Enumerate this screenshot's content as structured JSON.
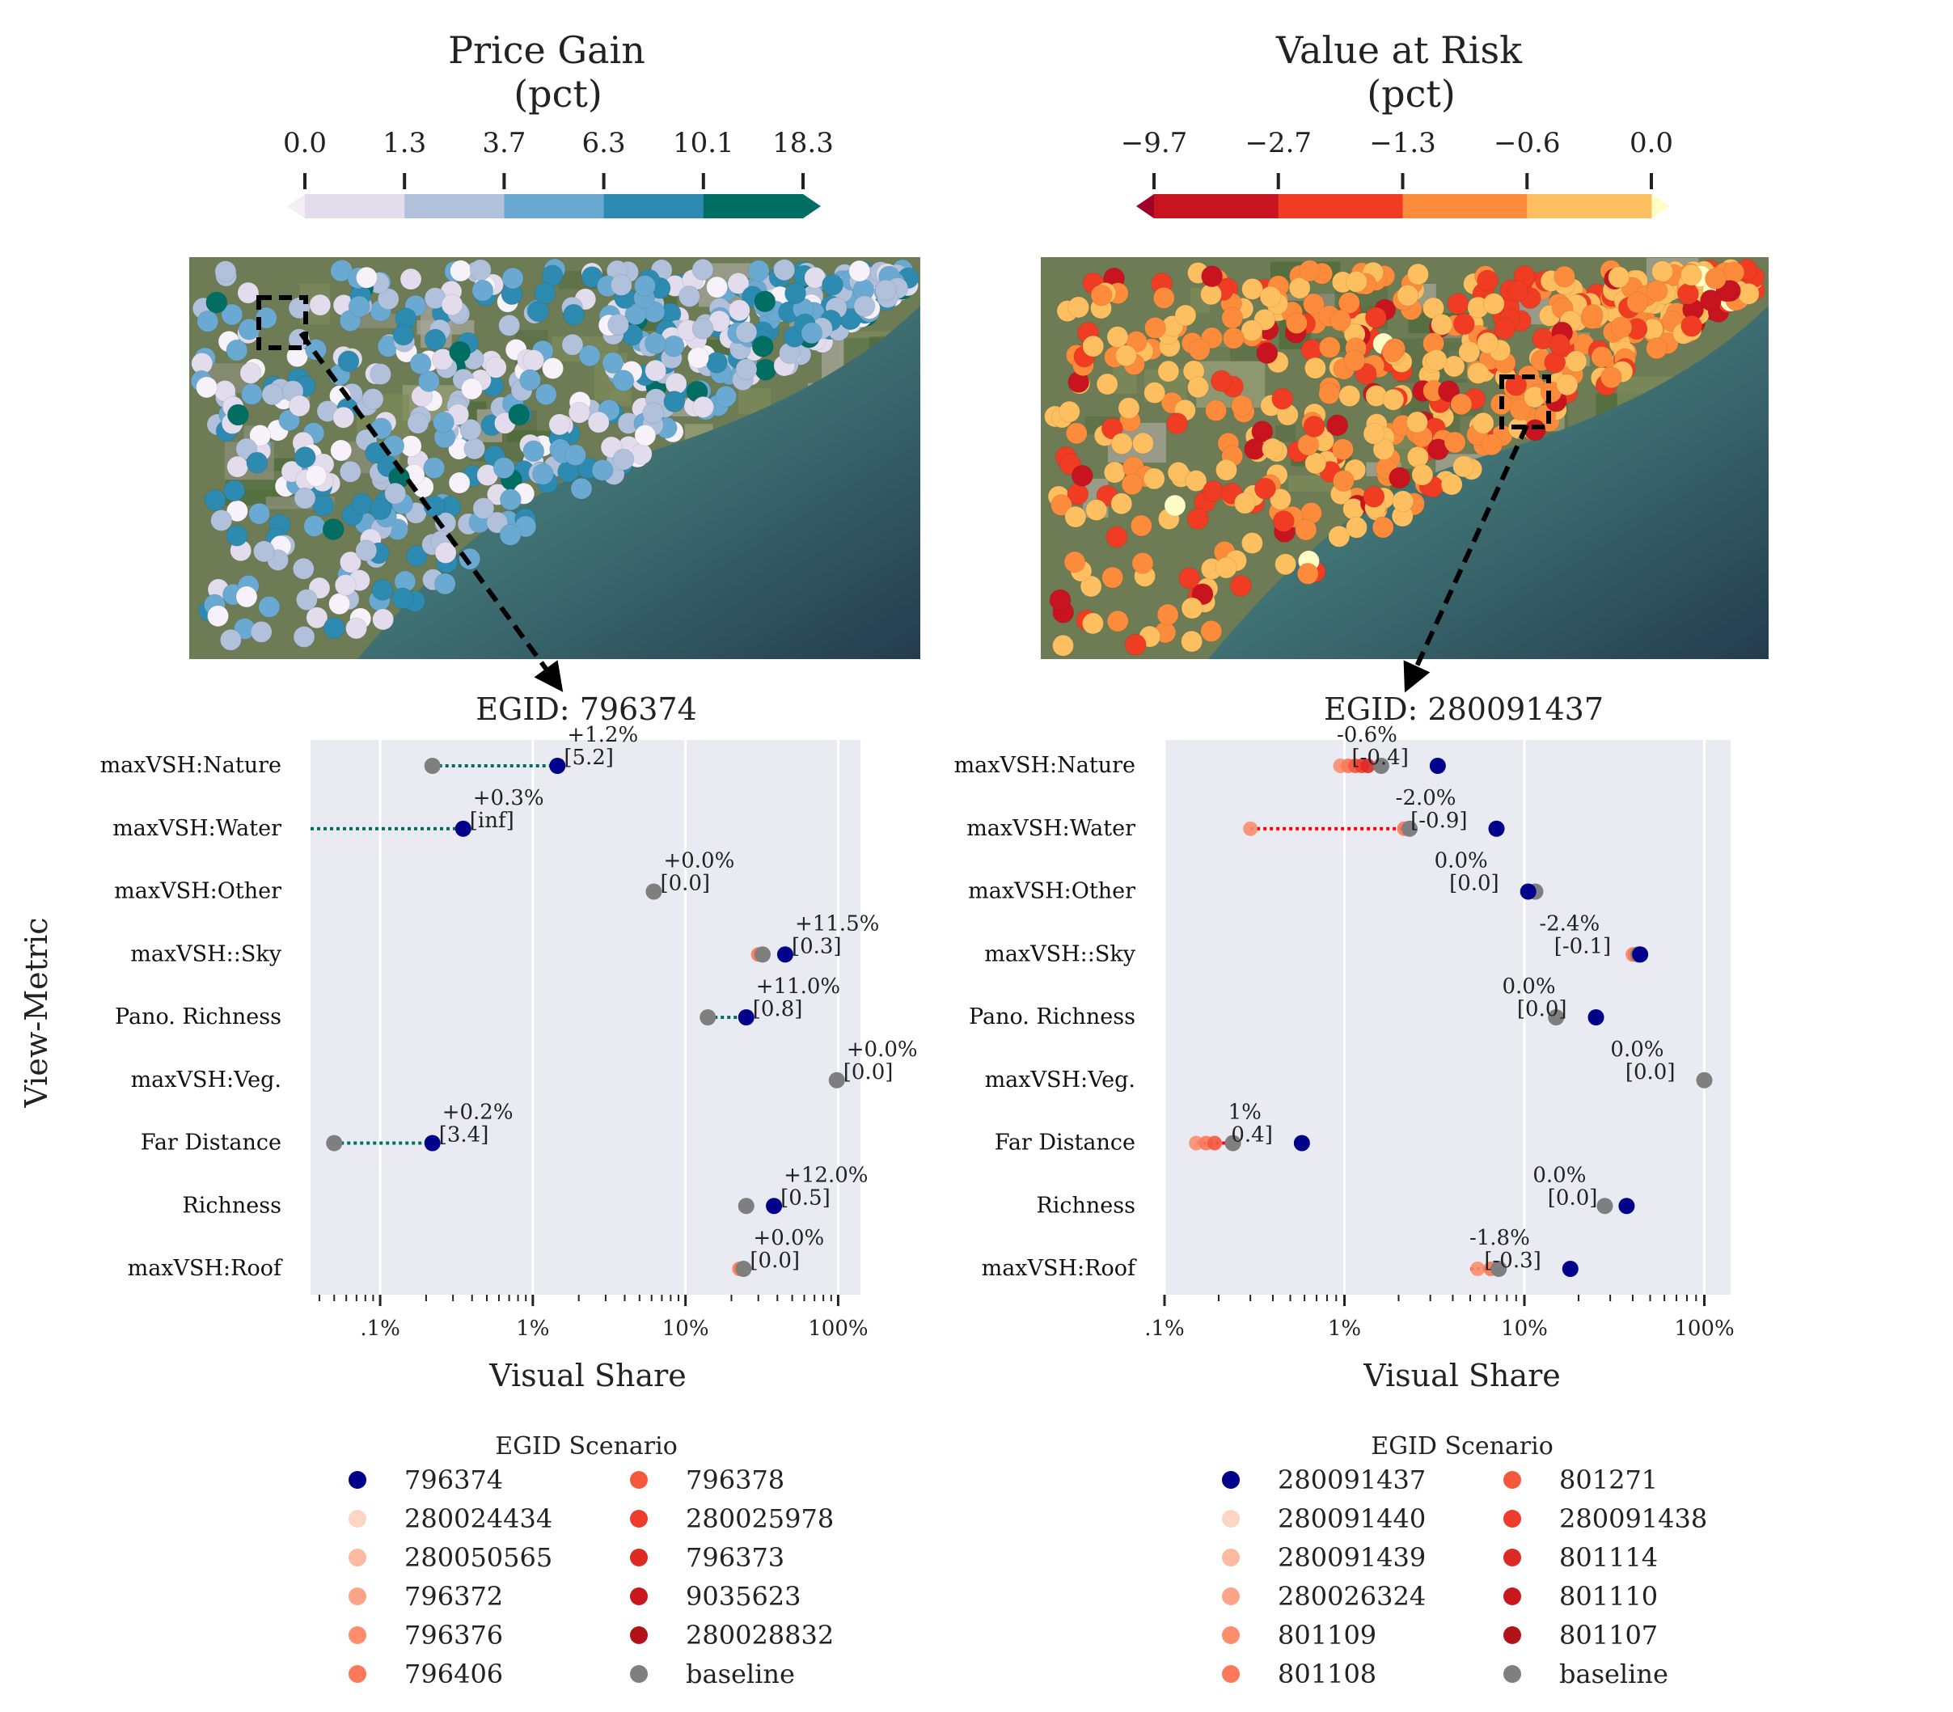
{
  "panels": [
    {
      "id": "left",
      "colorbar": {
        "title_line1": "Price Gain",
        "title_line2": "(pct)",
        "ticks": [
          "0.0",
          "1.3",
          "3.7",
          "6.3",
          "10.1",
          "18.3"
        ],
        "colors": [
          "#e2dcec",
          "#b1c1dc",
          "#6aaad2",
          "#2d8bb1",
          "#016e63"
        ],
        "under_color": "#f3eef6",
        "over_color": "#016e63"
      },
      "map": {
        "palette": [
          "#f7f2f9",
          "#e2dcec",
          "#b1c1dc",
          "#6aaad2",
          "#2d8bb1",
          "#016e63"
        ],
        "color_weights": [
          3,
          5,
          6,
          6,
          4,
          1
        ]
      },
      "chart_data": {
        "type": "scatter",
        "title": "EGID: 796374",
        "xlabel": "Visual Share",
        "ylabel": "View-Metric",
        "xscale": "log",
        "xlim": [
          0.035,
          140
        ],
        "xticks": [
          {
            "value": 0.1,
            "label": ".1%"
          },
          {
            "value": 1,
            "label": "1%"
          },
          {
            "value": 10,
            "label": "10%"
          },
          {
            "value": 100,
            "label": "100%"
          }
        ],
        "categories": [
          "maxVSH:Nature",
          "maxVSH:Water",
          "maxVSH:Other",
          "maxVSH::Sky",
          "Pano. Richness",
          "maxVSH:Veg.",
          "Far Distance",
          "Richness",
          "maxVSH:Roof"
        ],
        "connector_color": "#016e63",
        "rows": [
          {
            "metric": "maxVSH:Nature",
            "baseline": 0.22,
            "target": 1.45,
            "others": [],
            "label_line1": "+1.2%",
            "label_line2": "[5.2]",
            "line_from": 0.22
          },
          {
            "metric": "maxVSH:Water",
            "baseline": null,
            "target": 0.35,
            "others": [],
            "label_line1": "+0.3%",
            "label_line2": "[inf]",
            "line_from": 0.035
          },
          {
            "metric": "maxVSH:Other",
            "baseline": 6.2,
            "target": null,
            "others": [],
            "label_line1": "+0.0%",
            "label_line2": "[0.0]",
            "line_from": null
          },
          {
            "metric": "maxVSH::Sky",
            "baseline": 32,
            "target": 45,
            "others": [
              31,
              30
            ],
            "label_line1": "+11.5%",
            "label_line2": "[0.3]",
            "line_from": null
          },
          {
            "metric": "Pano. Richness",
            "baseline": 14,
            "target": 25,
            "others": [],
            "label_line1": "+11.0%",
            "label_line2": "[0.8]",
            "line_from": 14
          },
          {
            "metric": "maxVSH:Veg.",
            "baseline": 98,
            "target": null,
            "others": [],
            "label_line1": "+0.0%",
            "label_line2": "[0.0]",
            "line_from": null
          },
          {
            "metric": "Far Distance",
            "baseline": 0.05,
            "target": 0.22,
            "others": [],
            "label_line1": "+0.2%",
            "label_line2": "[3.4]",
            "line_from": 0.05
          },
          {
            "metric": "Richness",
            "baseline": 25,
            "target": 38,
            "others": [],
            "label_line1": "+12.0%",
            "label_line2": "[0.5]",
            "line_from": null
          },
          {
            "metric": "maxVSH:Roof",
            "baseline": 24,
            "target": null,
            "others": [
              22.5,
              23
            ],
            "label_line1": "+0.0%",
            "label_line2": "[0.0]",
            "line_from": null
          }
        ],
        "legend": {
          "title": "EGID Scenario",
          "placement": "below",
          "entries": [
            {
              "label": "796374",
              "color": "#00008b"
            },
            {
              "label": "280024434",
              "color": "#fdd5c4"
            },
            {
              "label": "280050565",
              "color": "#fcbba1"
            },
            {
              "label": "796372",
              "color": "#fca487"
            },
            {
              "label": "796376",
              "color": "#fc8e6e"
            },
            {
              "label": "796406",
              "color": "#fb7858"
            },
            {
              "label": "796378",
              "color": "#f6583e"
            },
            {
              "label": "280025978",
              "color": "#ef3c2c"
            },
            {
              "label": "796373",
              "color": "#de2a25"
            },
            {
              "label": "9035623",
              "color": "#c9181d"
            },
            {
              "label": "280028832",
              "color": "#b31218"
            },
            {
              "label": "baseline",
              "color": "#7f7f7f"
            }
          ]
        }
      }
    },
    {
      "id": "right",
      "colorbar": {
        "title_line1": "Value at Risk",
        "title_line2": "(pct)",
        "ticks": [
          "−9.7",
          "−2.7",
          "−1.3",
          "−0.6",
          "0.0"
        ],
        "colors": [
          "#c7141f",
          "#ef3c23",
          "#fc8c3b",
          "#fdbf5f"
        ],
        "under_color": "#9e0027",
        "over_color": "#fffcc4"
      },
      "map": {
        "palette": [
          "#c7141f",
          "#ef3c23",
          "#fc8c3b",
          "#fdbf5f",
          "#fffcc4"
        ],
        "color_weights": [
          1,
          3,
          5,
          6,
          0.15
        ]
      },
      "chart_data": {
        "type": "scatter",
        "title": "EGID: 280091437",
        "xlabel": "Visual Share",
        "ylabel": "",
        "xscale": "log",
        "xlim": [
          0.1,
          140
        ],
        "xticks": [
          {
            "value": 0.1,
            "label": ".1%"
          },
          {
            "value": 1,
            "label": "1%"
          },
          {
            "value": 10,
            "label": "10%"
          },
          {
            "value": 100,
            "label": "100%"
          }
        ],
        "categories": [
          "maxVSH:Nature",
          "maxVSH:Water",
          "maxVSH:Other",
          "maxVSH::Sky",
          "Pano. Richness",
          "maxVSH:Veg.",
          "Far Distance",
          "Richness",
          "maxVSH:Roof"
        ],
        "connector_color": "#ff0000",
        "rows": [
          {
            "metric": "maxVSH:Nature",
            "baseline": 1.6,
            "target": 3.3,
            "others": [
              0.95,
              1.05,
              1.15,
              1.25,
              1.35
            ],
            "label_line1": "-0.6%",
            "label_line2": "[-0.4]",
            "line_from": [
              0.95,
              1.6
            ]
          },
          {
            "metric": "maxVSH:Water",
            "baseline": 2.3,
            "target": 7.0,
            "others": [
              0.3,
              2.15
            ],
            "label_line1": "-2.0%",
            "label_line2": "[-0.9]",
            "line_from": [
              0.3,
              2.3
            ]
          },
          {
            "metric": "maxVSH:Other",
            "baseline": 11.5,
            "target": 10.5,
            "others": [],
            "label_line1": "0.0%",
            "label_line2": "[0.0]",
            "line_from": null
          },
          {
            "metric": "maxVSH::Sky",
            "baseline": 43,
            "target": 44,
            "others": [
              40,
              41
            ],
            "label_line1": "-2.4%",
            "label_line2": "[-0.1]",
            "line_from": null
          },
          {
            "metric": "Pano. Richness",
            "baseline": 15,
            "target": 25,
            "others": [],
            "label_line1": "0.0%",
            "label_line2": "[0.0]",
            "line_from": null
          },
          {
            "metric": "maxVSH:Veg.",
            "baseline": 100,
            "target": null,
            "others": [],
            "label_line1": "0.0%",
            "label_line2": "[0.0]",
            "line_from": null
          },
          {
            "metric": "Far Distance",
            "baseline": 0.24,
            "target": 0.58,
            "others": [
              0.15,
              0.17,
              0.19
            ],
            "label_line1": "1%",
            "label_line2": "0.4]",
            "line_from": [
              0.15,
              0.24
            ]
          },
          {
            "metric": "Richness",
            "baseline": 28,
            "target": 37,
            "others": [],
            "label_line1": "0.0%",
            "label_line2": "[0.0]",
            "line_from": null
          },
          {
            "metric": "maxVSH:Roof",
            "baseline": 7.2,
            "target": 18,
            "others": [
              5.5,
              6.5
            ],
            "label_line1": "-1.8%",
            "label_line2": "[-0.3]",
            "line_from": [
              5.0,
              7.2
            ]
          }
        ],
        "legend": {
          "title": "EGID Scenario",
          "placement": "below",
          "entries": [
            {
              "label": "280091437",
              "color": "#00008b"
            },
            {
              "label": "280091440",
              "color": "#fdd5c4"
            },
            {
              "label": "280091439",
              "color": "#fcbba1"
            },
            {
              "label": "280026324",
              "color": "#fca487"
            },
            {
              "label": "801109",
              "color": "#fc8e6e"
            },
            {
              "label": "801108",
              "color": "#fb7858"
            },
            {
              "label": "801271",
              "color": "#f6583e"
            },
            {
              "label": "280091438",
              "color": "#ef3c2c"
            },
            {
              "label": "801114",
              "color": "#de2a25"
            },
            {
              "label": "801110",
              "color": "#c9181d"
            },
            {
              "label": "801107",
              "color": "#b31218"
            },
            {
              "label": "baseline",
              "color": "#7f7f7f"
            }
          ]
        }
      }
    }
  ]
}
